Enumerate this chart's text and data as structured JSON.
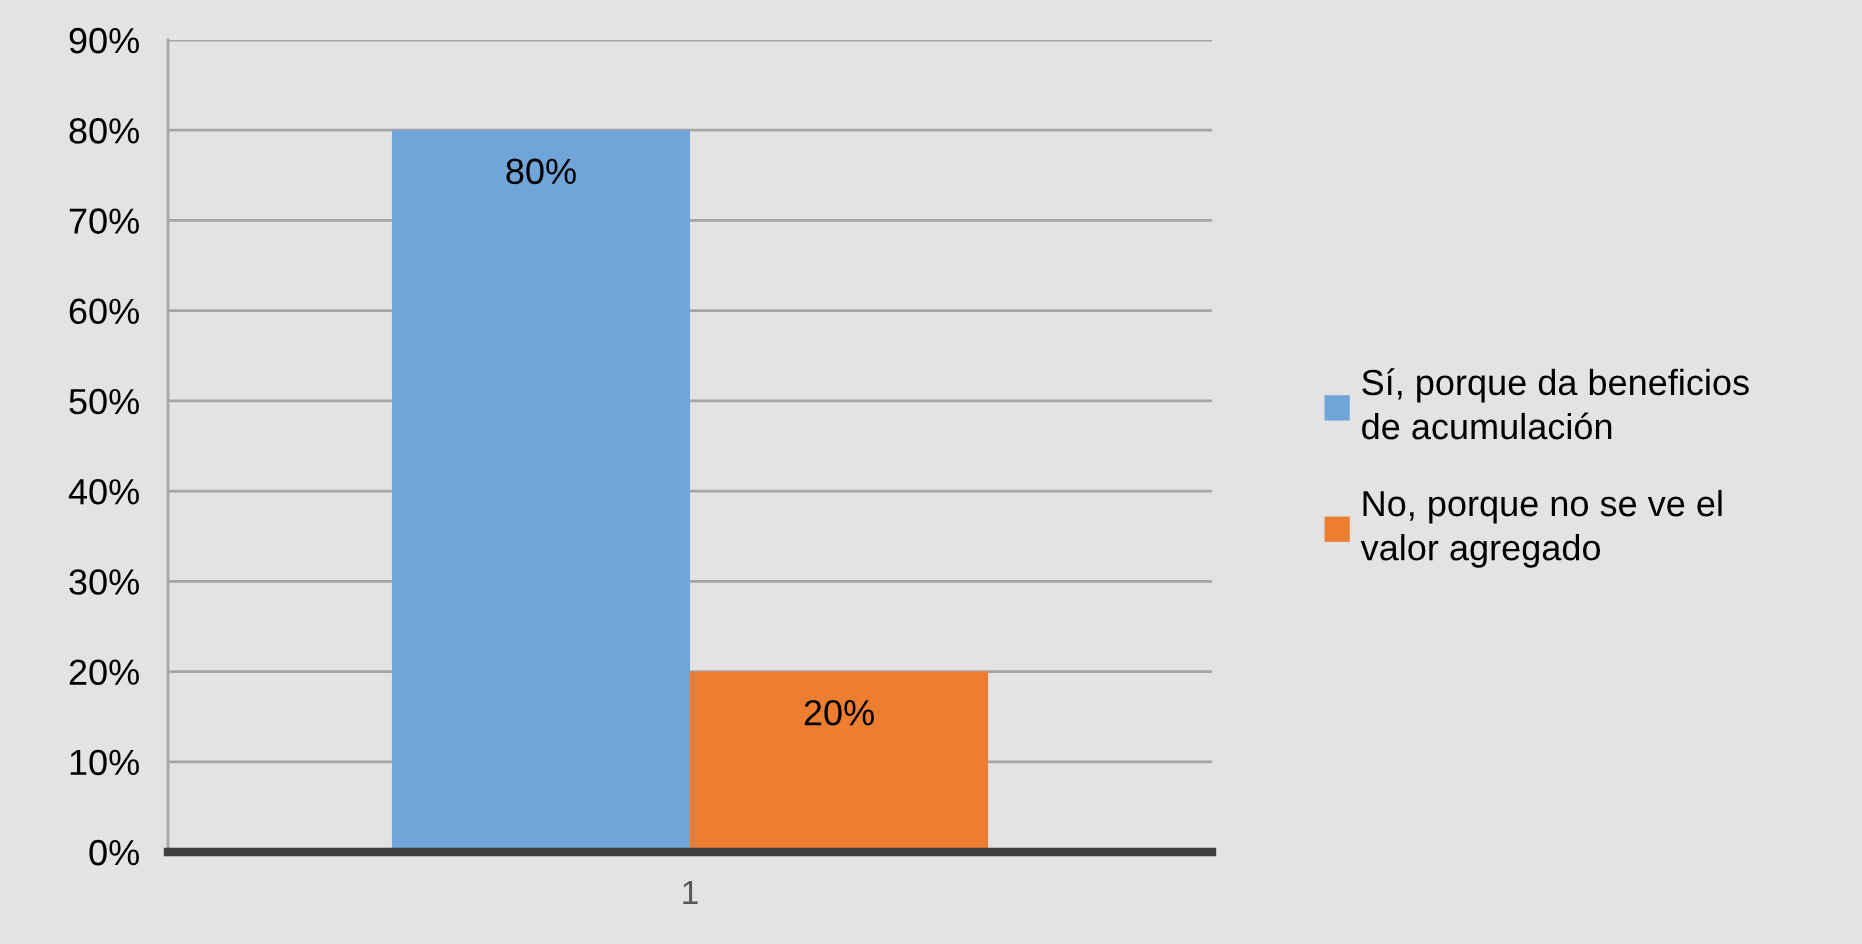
{
  "chart_data": {
    "type": "bar",
    "categories": [
      "1"
    ],
    "series": [
      {
        "name": "Sí, porque da beneficios de acumulación",
        "color": "#6fa5d8",
        "values": [
          80
        ],
        "value_labels": [
          "80%"
        ]
      },
      {
        "name": "No, porque no se ve el valor agregado",
        "color": "#ed7d31",
        "values": [
          20
        ],
        "value_labels": [
          "20%"
        ]
      }
    ],
    "ylim": [
      0,
      90
    ],
    "yticks": [
      {
        "value": 0,
        "label": "0%"
      },
      {
        "value": 10,
        "label": "10%"
      },
      {
        "value": 20,
        "label": "20%"
      },
      {
        "value": 30,
        "label": "30%"
      },
      {
        "value": 40,
        "label": "40%"
      },
      {
        "value": 50,
        "label": "50%"
      },
      {
        "value": 60,
        "label": "60%"
      },
      {
        "value": 70,
        "label": "70%"
      },
      {
        "value": 80,
        "label": "80%"
      },
      {
        "value": 90,
        "label": "90%"
      }
    ],
    "grid": "y",
    "legend": "right"
  }
}
